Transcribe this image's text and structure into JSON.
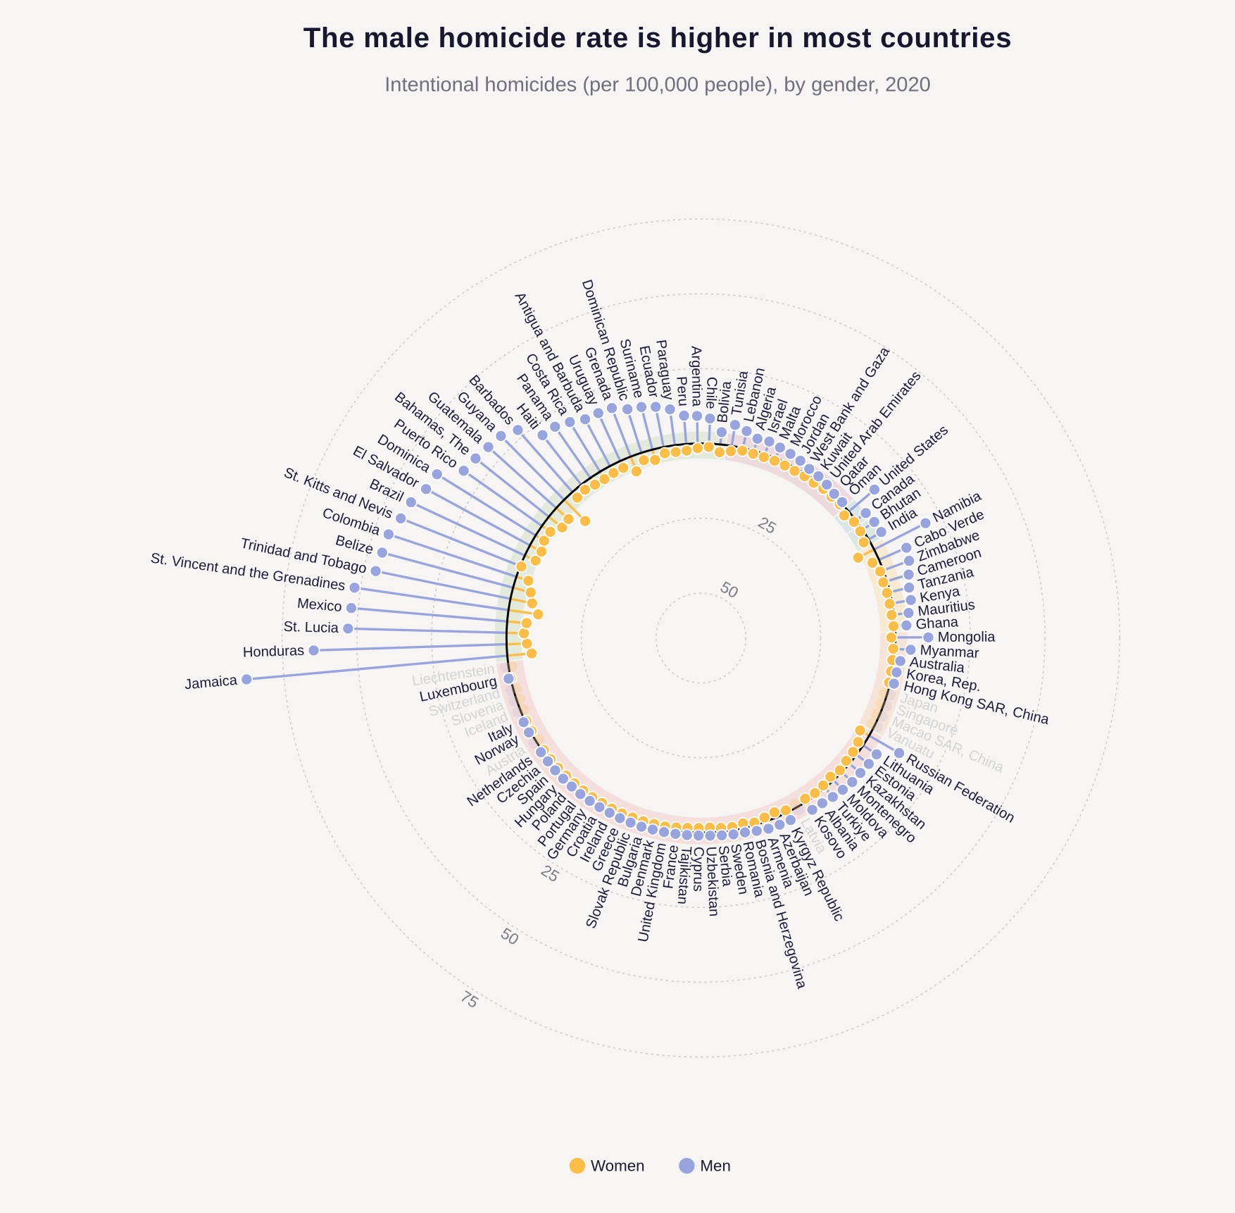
{
  "chart_data": {
    "type": "bar",
    "layout": "radial diverging lollipop",
    "title": "The male homicide rate is higher in most countries",
    "subtitle": "Intentional homicides (per 100,000 people), by gender, 2020",
    "legend": {
      "position": "bottom",
      "items": [
        "Women",
        "Men"
      ]
    },
    "women_ticks": [
      "25",
      "50"
    ],
    "men_ticks": [
      "25",
      "50",
      "75"
    ],
    "women_tick_values": [
      25,
      50
    ],
    "men_tick_values": [
      25,
      50,
      75
    ],
    "grid": true,
    "band_colors": [
      "#dfe7d6",
      "#ead5da",
      "#d5e1e6",
      "#d5e5e1",
      "#f7e7cb",
      "#f6e1d2",
      "#f3dad7"
    ],
    "categories": [
      "Jamaica",
      "Honduras",
      "St. Lucia",
      "Mexico",
      "St. Vincent and the Grenadines",
      "Trinidad and Tobago",
      "Belize",
      "Colombia",
      "St. Kitts and Nevis",
      "Brazil",
      "El Salvador",
      "Dominica",
      "Puerto Rico",
      "Bahamas, The",
      "Guatemala",
      "Guyana",
      "Barbados",
      "Haiti",
      "Panama",
      "Costa Rica",
      "Antigua and Barbuda",
      "Uruguay",
      "Grenada",
      "Dominican Republic",
      "Suriname",
      "Ecuador",
      "Paraguay",
      "Peru",
      "Argentina",
      "Chile",
      "Bolivia",
      "Tunisia",
      "Lebanon",
      "Algeria",
      "Israel",
      "Malta",
      "Morocco",
      "Jordan",
      "West Bank and Gaza",
      "Kuwait",
      "United Arab Emirates",
      "Qatar",
      "Oman",
      "United States",
      "Canada",
      "Bhutan",
      "India",
      "Namibia",
      "Cabo Verde",
      "Zimbabwe",
      "Cameroon",
      "Tanzania",
      "Kenya",
      "Mauritius",
      "Ghana",
      "Mongolia",
      "Myanmar",
      "Australia",
      "Korea, Rep.",
      "Hong Kong SAR, China",
      "Japan",
      "Singapore",
      "Macao SAR, China",
      "Vanuatu",
      "Russian Federation",
      "Lithuania",
      "Estonia",
      "Kazakhstan",
      "Montenegro",
      "Moldova",
      "Turkiye",
      "Albania",
      "Kosovo",
      "Latvia",
      "Kyrgyz Republic",
      "Azerbaijan",
      "Armenia",
      "Bosnia and Herzegovina",
      "Romania",
      "Sweden",
      "Serbia",
      "Uzbekistan",
      "Cyprus",
      "Tajikistan",
      "France",
      "United Kingdom",
      "Denmark",
      "Bulgaria",
      "Slovak Republic",
      "Greece",
      "Ireland",
      "Croatia",
      "Germany",
      "Portugal",
      "Poland",
      "Hungary",
      "Spain",
      "Czechia",
      "Netherlands",
      "Austria",
      "Norway",
      "Italy",
      "Iceland",
      "Slovenia",
      "Switzerland",
      "Luxembourg",
      "Liechtenstein"
    ],
    "band_index": [
      0,
      0,
      0,
      0,
      0,
      0,
      0,
      0,
      0,
      0,
      0,
      0,
      0,
      0,
      0,
      0,
      0,
      0,
      0,
      0,
      0,
      0,
      0,
      0,
      0,
      0,
      0,
      0,
      0,
      0,
      0,
      1,
      1,
      1,
      1,
      1,
      1,
      1,
      1,
      1,
      1,
      1,
      1,
      2,
      2,
      3,
      3,
      4,
      4,
      4,
      4,
      4,
      4,
      4,
      4,
      5,
      5,
      5,
      5,
      5,
      5,
      5,
      5,
      5,
      6,
      6,
      6,
      6,
      6,
      6,
      6,
      6,
      6,
      6,
      6,
      6,
      6,
      6,
      6,
      6,
      6,
      6,
      6,
      6,
      6,
      6,
      6,
      6,
      6,
      6,
      6,
      6,
      6,
      6,
      6,
      6,
      6,
      6,
      6,
      6,
      6,
      6,
      6,
      6,
      6,
      6,
      6
    ],
    "series": [
      {
        "name": "Women",
        "color": "#fcbd46",
        "values": [
          8.2,
          6.8,
          5.8,
          6.5,
          10,
          7.4,
          6.1,
          4.2,
          0.4,
          4,
          4.4,
          3.3,
          3.4,
          5.7,
          5.5,
          10,
          2.5,
          2.1,
          2.7,
          2.9,
          2.6,
          2.5,
          5.3,
          2.6,
          3.6,
          2.1,
          2.3,
          2.2,
          1.6,
          1.1,
          2.6,
          1.8,
          0.9,
          1.0,
          1.0,
          0.9,
          0.9,
          1.0,
          0.8,
          0.9,
          0.5,
          0.7,
          0.6,
          2.0,
          0.8,
          0.9,
          1.9,
          6,
          2.4,
          1.1,
          1.3,
          1.0,
          0.9,
          0.8,
          0.5,
          1.4,
          0.6,
          0.6,
          0.5,
          0.4,
          null,
          null,
          null,
          null,
          3.5,
          2.0,
          1.5,
          1.4,
          0.9,
          1.6,
          1.0,
          0.7,
          1.0,
          null,
          0.8,
          1.8,
          1.4,
          0.8,
          1.5,
          1.0,
          1.2,
          1.6,
          1.5,
          1.4,
          1.2,
          0.9,
          0.9,
          0.8,
          0.8,
          0.7,
          0.7,
          0.7,
          0.6,
          0.6,
          0.6,
          0.6,
          0.5,
          0.5,
          0.5,
          null,
          0.4,
          0.4,
          null,
          null,
          null,
          0,
          null
        ]
      },
      {
        "name": "Men",
        "color": "#97a4de",
        "values": [
          87.5,
          64.5,
          53,
          52.3,
          52,
          46,
          45.3,
          45,
          43,
          42,
          39.5,
          38.8,
          32,
          31.3,
          30.5,
          30,
          27.6,
          21,
          20.8,
          19.4,
          17.7,
          17.6,
          17.4,
          15.3,
          14.7,
          13.7,
          12.1,
          9.5,
          9.2,
          8.4,
          4.1,
          7.1,
          5.8,
          4.2,
          4.5,
          3.9,
          3.4,
          2.9,
          2.1,
          1.8,
          1.3,
          0.6,
          0.5,
          11.3,
          4.1,
          4.7,
          4.9,
          19.3,
          10,
          9.2,
          7.6,
          6.6,
          6.3,
          4.9,
          3.8,
          11,
          5.2,
          2.1,
          1.4,
          1.3,
          null,
          null,
          null,
          null,
          11.6,
          5.4,
          5.1,
          4.8,
          4.8,
          4.4,
          4.0,
          3.5,
          3.4,
          null,
          2.8,
          2.7,
          2.6,
          2.1,
          1.6,
          1.5,
          1.3,
          1.1,
          1.0,
          1.0,
          1.0,
          1.0,
          1.0,
          1.1,
          1.0,
          1.0,
          0.9,
          0.9,
          0.9,
          0.9,
          0.8,
          0.8,
          0.8,
          0.7,
          0.7,
          null,
          0.6,
          0.6,
          null,
          null,
          null,
          0.7,
          null
        ]
      }
    ]
  }
}
